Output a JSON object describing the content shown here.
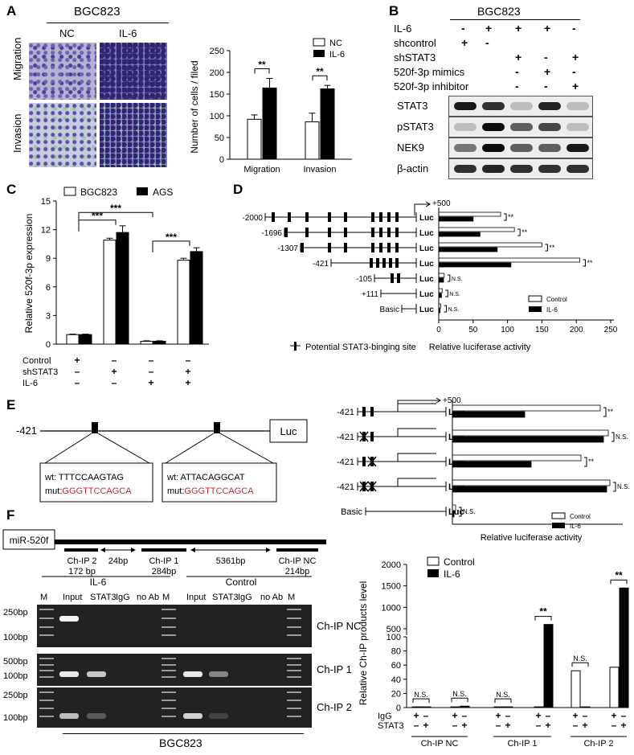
{
  "panels": {
    "A": {
      "label": "A",
      "cell_line": "BGC823",
      "col_labels": [
        "NC",
        "IL-6"
      ],
      "row_labels": [
        "Migration",
        "Invasion"
      ],
      "chart_data": {
        "type": "bar",
        "ylabel": "Number of cells / filed",
        "categories": [
          "Migration",
          "Invasion"
        ],
        "ylim": [
          0,
          250
        ],
        "yticks": [
          0,
          50,
          100,
          150,
          200,
          250
        ],
        "series": [
          {
            "name": "NC",
            "values": [
              92,
              86
            ],
            "errors": [
              10,
              20
            ]
          },
          {
            "name": "IL-6",
            "values": [
              164,
              162
            ],
            "errors": [
              22,
              8
            ]
          }
        ],
        "sig": [
          "**",
          "**"
        ],
        "legend": "top-right"
      }
    },
    "B": {
      "label": "B",
      "cell_line": "BGC823",
      "conditions": [
        {
          "name": "IL-6",
          "marks": [
            "-",
            "+",
            "+",
            "+",
            "-"
          ]
        },
        {
          "name": "shcontrol",
          "marks": [
            "+",
            "-",
            "",
            "",
            ""
          ]
        },
        {
          "name": "shSTAT3",
          "marks": [
            "",
            "",
            "+",
            "-",
            "+"
          ]
        },
        {
          "name": "520f-3p mimics",
          "marks": [
            "",
            "",
            "-",
            "+",
            "-"
          ]
        },
        {
          "name": "520f-3p inhibitor",
          "marks": [
            "",
            "",
            "-",
            "-",
            "+"
          ]
        }
      ],
      "bands": [
        "STAT3",
        "pSTAT3",
        "NEK9",
        "β-actin"
      ]
    },
    "C": {
      "label": "C",
      "chart_data": {
        "type": "bar",
        "ylabel": "Relative 520f-3p expression",
        "ylim": [
          0,
          15
        ],
        "yticks": [
          0,
          3,
          6,
          9,
          12,
          15
        ],
        "series": [
          {
            "name": "BGC823",
            "values": [
              1.0,
              10.9,
              0.3,
              8.8
            ],
            "errors": [
              0.05,
              0.2,
              0.05,
              0.2
            ]
          },
          {
            "name": "AGS",
            "values": [
              1.0,
              11.7,
              0.3,
              9.7
            ],
            "errors": [
              0.05,
              0.7,
              0.05,
              0.4
            ]
          }
        ],
        "sig": [
          "***",
          "***",
          "***"
        ],
        "legend": "top",
        "conditions": [
          {
            "name": "Control",
            "marks": [
              "+",
              "–",
              "–",
              "–"
            ]
          },
          {
            "name": "shSTAT3",
            "marks": [
              "–",
              "+",
              "–",
              "+"
            ]
          },
          {
            "name": "IL-6",
            "marks": [
              "–",
              "–",
              "+",
              "+"
            ]
          }
        ]
      }
    },
    "D": {
      "label": "D",
      "constructs": [
        "-2000",
        "-1696",
        "-1307",
        "-421",
        "-105",
        "+111",
        "Basic"
      ],
      "tss_label": "+500",
      "luc": "Luc",
      "site_note": "Potential STAT3-binging site",
      "chart_data": {
        "type": "bar",
        "orientation": "horizontal",
        "xlabel": "Relative luciferase activity",
        "xlim": [
          0,
          250
        ],
        "xticks": [
          0,
          50,
          100,
          150,
          200,
          250
        ],
        "series": [
          {
            "name": "Control",
            "values": [
              90,
              110,
              150,
              205,
              8,
              5,
              3
            ]
          },
          {
            "name": "IL-6",
            "values": [
              50,
              60,
              85,
              105,
              7,
              4,
              2
            ]
          }
        ],
        "sig": [
          "**",
          "**",
          "**",
          "**",
          "N.S.",
          "N.S.",
          "N.S."
        ],
        "legend": "bottom-right"
      }
    },
    "E": {
      "label": "E",
      "start": "-421",
      "luc": "Luc",
      "box1": {
        "wt_prefix": "wt: ",
        "wt": "TTTCCAAGTAG",
        "mut_prefix": "mut:",
        "mut": "GGGTTCCAGCA"
      },
      "box2": {
        "wt_prefix": "wt: ",
        "wt": "ATTACAGGCAT",
        "mut_prefix": "mut:",
        "mut": "GGGTTCCAGCA"
      },
      "constructs": [
        "-421",
        "-421",
        "-421",
        "-421",
        "Basic"
      ],
      "tss_label": "+500",
      "chart_data": {
        "type": "bar",
        "orientation": "horizontal",
        "xlabel": "Relative luciferase activity",
        "series": [
          {
            "name": "Control",
            "values": [
              0.92,
              0.97,
              0.8,
              0.98,
              0.02
            ]
          },
          {
            "name": "IL-6",
            "values": [
              0.45,
              0.94,
              0.49,
              0.96,
              0.01
            ]
          }
        ],
        "sig": [
          "**",
          "N.S.",
          "**",
          "N.S.",
          "N.S."
        ],
        "legend": "bottom-right"
      }
    },
    "F": {
      "label": "F",
      "gene": "miR-520f",
      "regions": [
        {
          "name": "Ch-IP 2",
          "size": "172 bp"
        },
        {
          "name": "Ch-IP 1",
          "size": "284bp"
        },
        {
          "name": "Ch-IP NC",
          "size": "214bp"
        }
      ],
      "gaps": [
        "24bp",
        "5361bp"
      ],
      "group_labels": [
        "IL-6",
        "Control"
      ],
      "lanes": [
        "M",
        "Input",
        "STAT3",
        "IgG",
        "no Ab",
        "M",
        "Input",
        "STAT3",
        "IgG",
        "no Ab",
        "M"
      ],
      "gel_rows": [
        {
          "name": "Ch-IP NC",
          "markers": [
            "250bp",
            "100bp"
          ]
        },
        {
          "name": "Ch-IP 1",
          "markers": [
            "500bp",
            "100bp"
          ]
        },
        {
          "name": "Ch-IP 2",
          "markers": [
            "250bp",
            "100bp"
          ]
        }
      ],
      "cell_line": "BGC823",
      "chart_data": {
        "type": "bar",
        "ylabel": "Relative Ch-IP products level",
        "broken_axis": true,
        "yticks_top": [
          500,
          1000,
          1500,
          2000
        ],
        "yticks_bottom": [
          0,
          20,
          40,
          60,
          80,
          100
        ],
        "groups": [
          "Ch-IP NC",
          "Ch-IP 1",
          "Ch-IP 2"
        ],
        "series": [
          {
            "name": "Control",
            "values": [
              1,
              1,
              1,
              1,
              52,
              57
            ]
          },
          {
            "name": "IL-6",
            "values": [
              1,
              2,
              1,
              600,
              1,
              1450
            ]
          }
        ],
        "sig": [
          "N.S.",
          "N.S.",
          "N.S.",
          "**",
          "N.S.",
          "**"
        ],
        "conditions": [
          {
            "name": "IgG",
            "marks": [
              "+",
              "–",
              "+",
              "–",
              "+",
              "–",
              "+",
              "–",
              "+",
              "–",
              "+",
              "–"
            ]
          },
          {
            "name": "STAT3",
            "marks": [
              "–",
              "+",
              "–",
              "+",
              "–",
              "+",
              "–",
              "+",
              "–",
              "+",
              "–",
              "+"
            ]
          }
        ],
        "legend": "top-left"
      }
    }
  }
}
